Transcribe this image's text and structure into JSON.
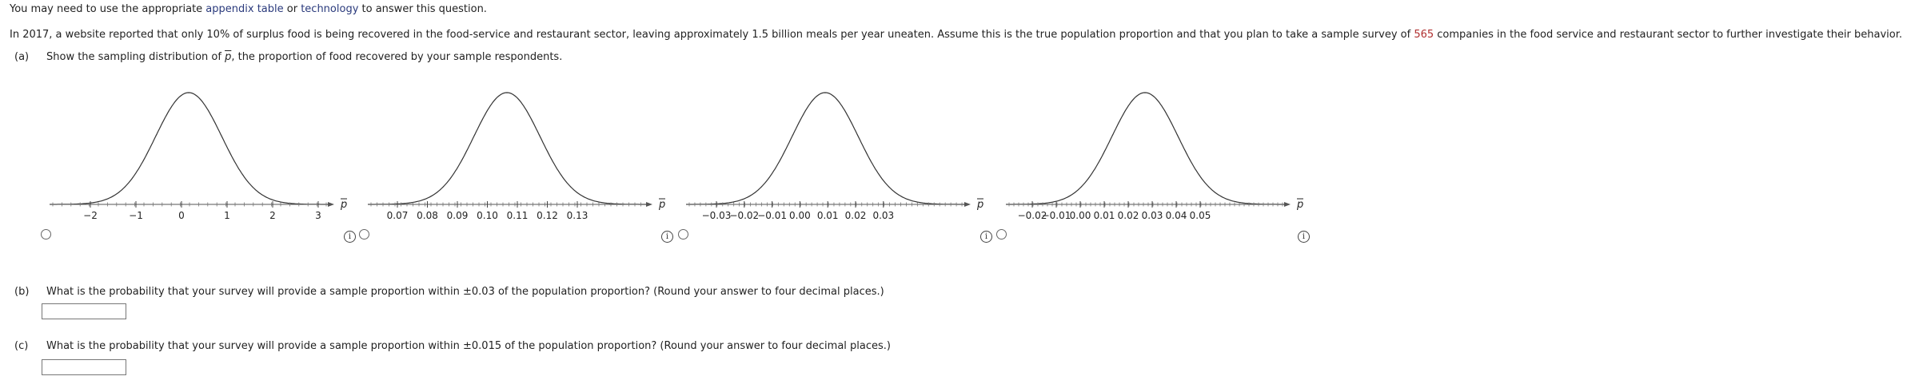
{
  "intro": {
    "prefix": "You may need to use the appropriate ",
    "link1": "appendix table",
    "mid": " or ",
    "link2": "technology",
    "suffix": " to answer this question."
  },
  "problem": {
    "part1": "In 2017, a website reported that only 10% of surplus food is being recovered in the food-service and restaurant sector, leaving approximately 1.5 billion meals per year uneaten. Assume this is the true population proportion and that you plan to take a sample survey of ",
    "sample_size": "565",
    "part2": " companies in the food service and restaurant sector to further investigate their behavior."
  },
  "part_a": {
    "label": "(a)",
    "text_before": "Show the sampling distribution of ",
    "symbol": "p",
    "text_after": ", the proportion of food recovered by your sample respondents."
  },
  "graphs": [
    {
      "axis_symbol": "p",
      "ticks": [
        "−2",
        "−1",
        "0",
        "1",
        "2",
        "3"
      ]
    },
    {
      "axis_symbol": "p",
      "ticks": [
        "0.07",
        "0.08",
        "0.09",
        "0.10",
        "0.11",
        "0.12",
        "0.13"
      ]
    },
    {
      "axis_symbol": "p",
      "ticks": [
        "−0.03",
        "−0.02",
        "−0.01",
        "0.00",
        "0.01",
        "0.02",
        "0.03"
      ]
    },
    {
      "axis_symbol": "p",
      "ticks": [
        "−0.02",
        "−0.01",
        "0.00",
        "0.01",
        "0.02",
        "0.03",
        "0.04",
        "0.05"
      ]
    }
  ],
  "info_glyph": "i",
  "part_b": {
    "label": "(b)",
    "text": "What is the probability that your survey will provide a sample proportion within ±0.03 of the population proportion? (Round your answer to four decimal places.)",
    "value": ""
  },
  "part_c": {
    "label": "(c)",
    "text": "What is the probability that your survey will provide a sample proportion within ±0.015 of the population proportion? (Round your answer to four decimal places.)",
    "value": ""
  }
}
